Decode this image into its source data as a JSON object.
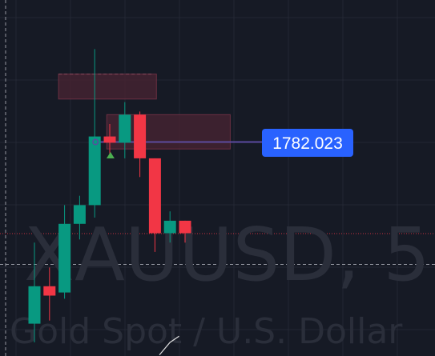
{
  "chart_data": {
    "type": "candlestick",
    "watermark": {
      "symbol": "XAUUSD, 5",
      "description": "Gold Spot / U.S. Dollar"
    },
    "price_label": "1782.023",
    "colors": {
      "background": "#161a25",
      "grid": "#232733",
      "bull": "#089981",
      "bear": "#f23645",
      "zone_fill": "#4a2433",
      "zone_border": "#6b2f42",
      "level_line": "#5b4a9e",
      "label_bg": "#2962ff",
      "crosshair": "#9598a1",
      "price_line": "#f23645",
      "signal": "#4caf50",
      "indicator_line": "#e0e0e0"
    },
    "candles": [
      {
        "open": 1776.2,
        "high": 1778.8,
        "low": 1775.6,
        "close": 1777.4
      },
      {
        "open": 1777.4,
        "high": 1778.0,
        "low": 1776.3,
        "close": 1777.1
      },
      {
        "open": 1777.2,
        "high": 1780.0,
        "low": 1777.0,
        "close": 1779.4
      },
      {
        "open": 1779.4,
        "high": 1780.3,
        "low": 1778.9,
        "close": 1780.0
      },
      {
        "open": 1780.0,
        "high": 1785.0,
        "low": 1779.6,
        "close": 1782.2
      },
      {
        "open": 1782.2,
        "high": 1782.6,
        "low": 1781.6,
        "close": 1782.0
      },
      {
        "open": 1782.0,
        "high": 1783.3,
        "low": 1781.5,
        "close": 1782.9
      },
      {
        "open": 1782.9,
        "high": 1783.0,
        "low": 1780.9,
        "close": 1781.5
      },
      {
        "open": 1781.5,
        "high": 1781.5,
        "low": 1778.5,
        "close": 1779.1
      },
      {
        "open": 1779.1,
        "high": 1779.8,
        "low": 1778.8,
        "close": 1779.5
      },
      {
        "open": 1779.5,
        "high": 1779.5,
        "low": 1778.8,
        "close": 1779.1
      }
    ],
    "level": 1782.023,
    "zones": [
      {
        "top": 1784.2,
        "bottom": 1783.4,
        "from": 2,
        "to": 7.7
      },
      {
        "top": 1782.9,
        "bottom": 1781.8,
        "from": 5.2,
        "to": 12.6
      }
    ],
    "last_price": 1779.1,
    "crosshair_price": 1778.1,
    "signal_price": 1781.6,
    "indicator_line": [
      {
        "x": 8.3,
        "price": 1775.2
      },
      {
        "x": 9.0,
        "price": 1775.6
      },
      {
        "x": 9.6,
        "price": 1775.8
      }
    ]
  }
}
